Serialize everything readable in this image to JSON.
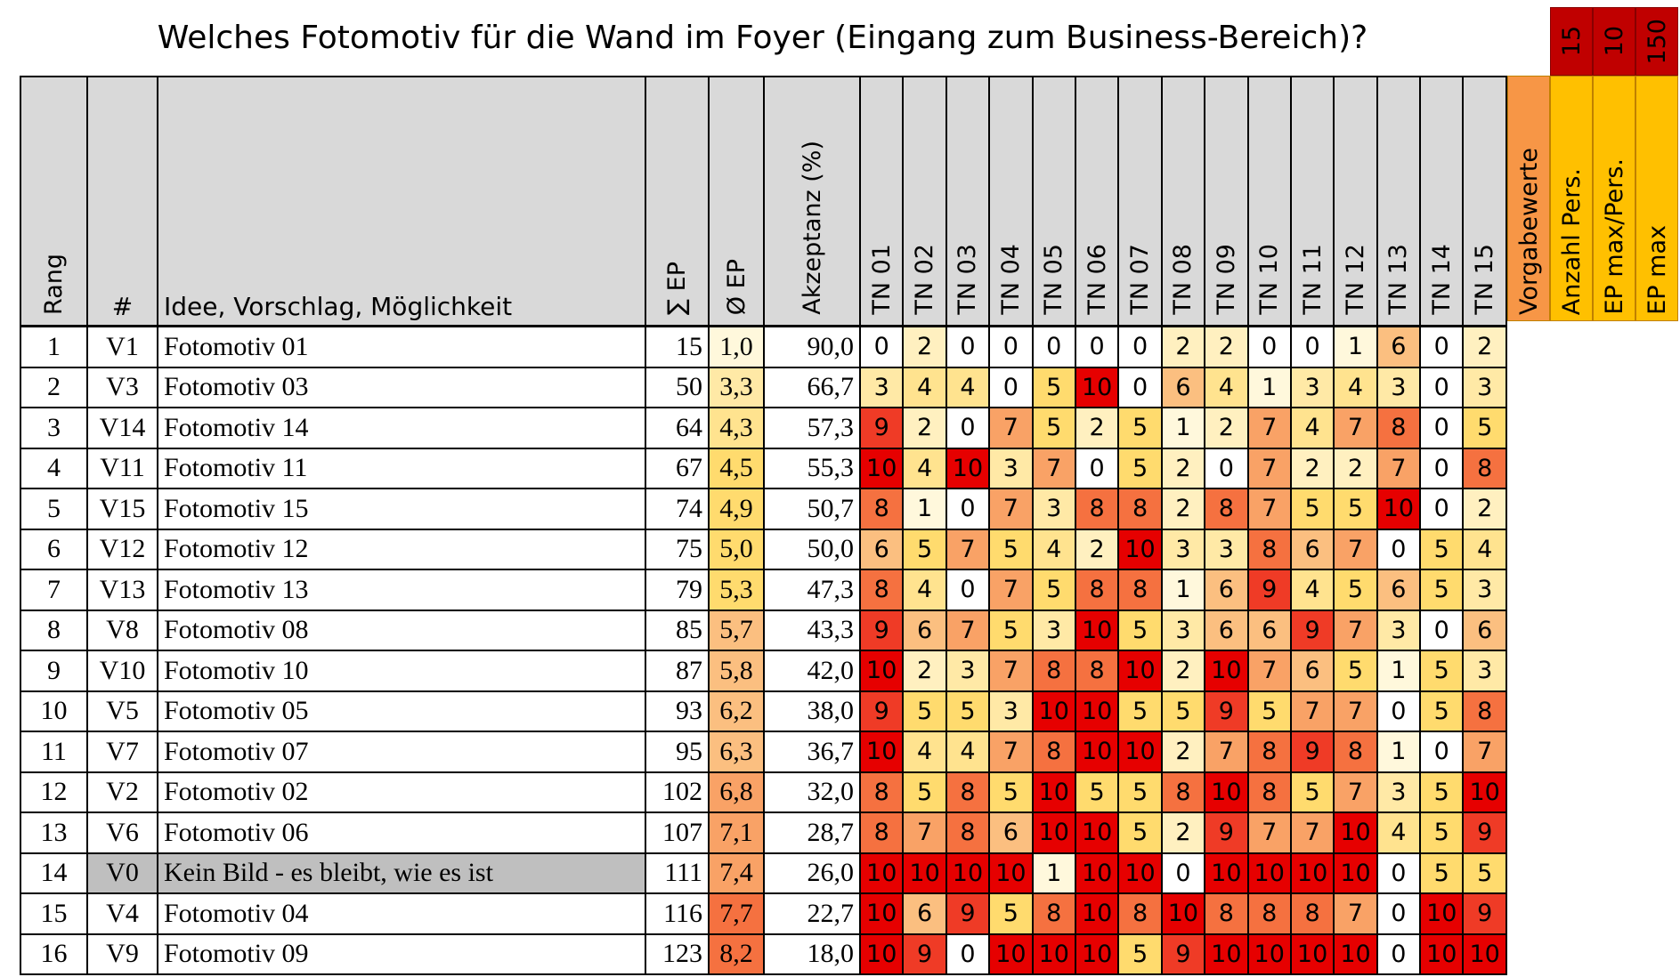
{
  "title": "Welches Fotomotiv für die Wand im Foyer (Eingang zum Business-Bereich)?",
  "columns": [
    "Rang",
    "#",
    "Idee, Vorschlag, Möglichkeit",
    "∑ EP",
    "Ø EP",
    "Akzeptanz (%)",
    "TN 01",
    "TN 02",
    "TN 03",
    "TN 04",
    "TN 05",
    "TN 06",
    "TN 07",
    "TN 08",
    "TN 09",
    "TN 10",
    "TN 11",
    "TN 12",
    "TN 13",
    "TN 14",
    "TN 15"
  ],
  "settings": [
    {
      "label": "Vorgabewerte"
    },
    {
      "label": "Anzahl Pers.",
      "value": "15"
    },
    {
      "label": "EP max/Pers.",
      "value": "10"
    },
    {
      "label": "EP max",
      "value": "150"
    }
  ],
  "rows": [
    {
      "rank": "1",
      "id": "V1",
      "idea": "Fotomotiv 01",
      "sum": "15",
      "avg": "1,0",
      "acceptance": "90,0",
      "scores": [
        0,
        2,
        0,
        0,
        0,
        0,
        0,
        2,
        2,
        0,
        0,
        1,
        6,
        0,
        2
      ]
    },
    {
      "rank": "2",
      "id": "V3",
      "idea": "Fotomotiv 03",
      "sum": "50",
      "avg": "3,3",
      "acceptance": "66,7",
      "scores": [
        3,
        4,
        4,
        0,
        5,
        10,
        0,
        6,
        4,
        1,
        3,
        4,
        3,
        0,
        3
      ]
    },
    {
      "rank": "3",
      "id": "V14",
      "idea": "Fotomotiv 14",
      "sum": "64",
      "avg": "4,3",
      "acceptance": "57,3",
      "scores": [
        9,
        2,
        0,
        7,
        5,
        2,
        5,
        1,
        2,
        7,
        4,
        7,
        8,
        0,
        5
      ]
    },
    {
      "rank": "4",
      "id": "V11",
      "idea": "Fotomotiv 11",
      "sum": "67",
      "avg": "4,5",
      "acceptance": "55,3",
      "scores": [
        10,
        4,
        10,
        3,
        7,
        0,
        5,
        2,
        0,
        7,
        2,
        2,
        7,
        0,
        8
      ]
    },
    {
      "rank": "5",
      "id": "V15",
      "idea": "Fotomotiv 15",
      "sum": "74",
      "avg": "4,9",
      "acceptance": "50,7",
      "scores": [
        8,
        1,
        0,
        7,
        3,
        8,
        8,
        2,
        8,
        7,
        5,
        5,
        10,
        0,
        2
      ]
    },
    {
      "rank": "6",
      "id": "V12",
      "idea": "Fotomotiv 12",
      "sum": "75",
      "avg": "5,0",
      "acceptance": "50,0",
      "scores": [
        6,
        5,
        7,
        5,
        4,
        2,
        10,
        3,
        3,
        8,
        6,
        7,
        0,
        5,
        4
      ]
    },
    {
      "rank": "7",
      "id": "V13",
      "idea": "Fotomotiv 13",
      "sum": "79",
      "avg": "5,3",
      "acceptance": "47,3",
      "scores": [
        8,
        4,
        0,
        7,
        5,
        8,
        8,
        1,
        6,
        9,
        4,
        5,
        6,
        5,
        3
      ]
    },
    {
      "rank": "8",
      "id": "V8",
      "idea": "Fotomotiv 08",
      "sum": "85",
      "avg": "5,7",
      "acceptance": "43,3",
      "scores": [
        9,
        6,
        7,
        5,
        3,
        10,
        5,
        3,
        6,
        6,
        9,
        7,
        3,
        0,
        6
      ]
    },
    {
      "rank": "9",
      "id": "V10",
      "idea": "Fotomotiv 10",
      "sum": "87",
      "avg": "5,8",
      "acceptance": "42,0",
      "scores": [
        10,
        2,
        3,
        7,
        8,
        8,
        10,
        2,
        10,
        7,
        6,
        5,
        1,
        5,
        3
      ]
    },
    {
      "rank": "10",
      "id": "V5",
      "idea": "Fotomotiv 05",
      "sum": "93",
      "avg": "6,2",
      "acceptance": "38,0",
      "scores": [
        9,
        5,
        5,
        3,
        10,
        10,
        5,
        5,
        9,
        5,
        7,
        7,
        0,
        5,
        8
      ]
    },
    {
      "rank": "11",
      "id": "V7",
      "idea": "Fotomotiv 07",
      "sum": "95",
      "avg": "6,3",
      "acceptance": "36,7",
      "scores": [
        10,
        4,
        4,
        7,
        8,
        10,
        10,
        2,
        7,
        8,
        9,
        8,
        1,
        0,
        7
      ]
    },
    {
      "rank": "12",
      "id": "V2",
      "idea": "Fotomotiv 02",
      "sum": "102",
      "avg": "6,8",
      "acceptance": "32,0",
      "scores": [
        8,
        5,
        8,
        5,
        10,
        5,
        5,
        8,
        10,
        8,
        5,
        7,
        3,
        5,
        10
      ]
    },
    {
      "rank": "13",
      "id": "V6",
      "idea": "Fotomotiv 06",
      "sum": "107",
      "avg": "7,1",
      "acceptance": "28,7",
      "scores": [
        8,
        7,
        8,
        6,
        10,
        10,
        5,
        2,
        9,
        7,
        7,
        10,
        4,
        5,
        9
      ]
    },
    {
      "rank": "14",
      "id": "V0",
      "idea": "Kein Bild - es bleibt, wie es ist",
      "sum": "111",
      "avg": "7,4",
      "acceptance": "26,0",
      "scores": [
        10,
        10,
        10,
        10,
        1,
        10,
        10,
        0,
        10,
        10,
        10,
        10,
        0,
        5,
        5
      ]
    },
    {
      "rank": "15",
      "id": "V4",
      "idea": "Fotomotiv 04",
      "sum": "116",
      "avg": "7,7",
      "acceptance": "22,7",
      "scores": [
        10,
        6,
        9,
        5,
        8,
        10,
        8,
        10,
        8,
        8,
        8,
        7,
        0,
        10,
        9
      ]
    },
    {
      "rank": "16",
      "id": "V9",
      "idea": "Fotomotiv 09",
      "sum": "123",
      "avg": "8,2",
      "acceptance": "18,0",
      "scores": [
        10,
        9,
        0,
        10,
        10,
        10,
        5,
        9,
        10,
        10,
        10,
        10,
        0,
        10,
        10
      ]
    }
  ]
}
